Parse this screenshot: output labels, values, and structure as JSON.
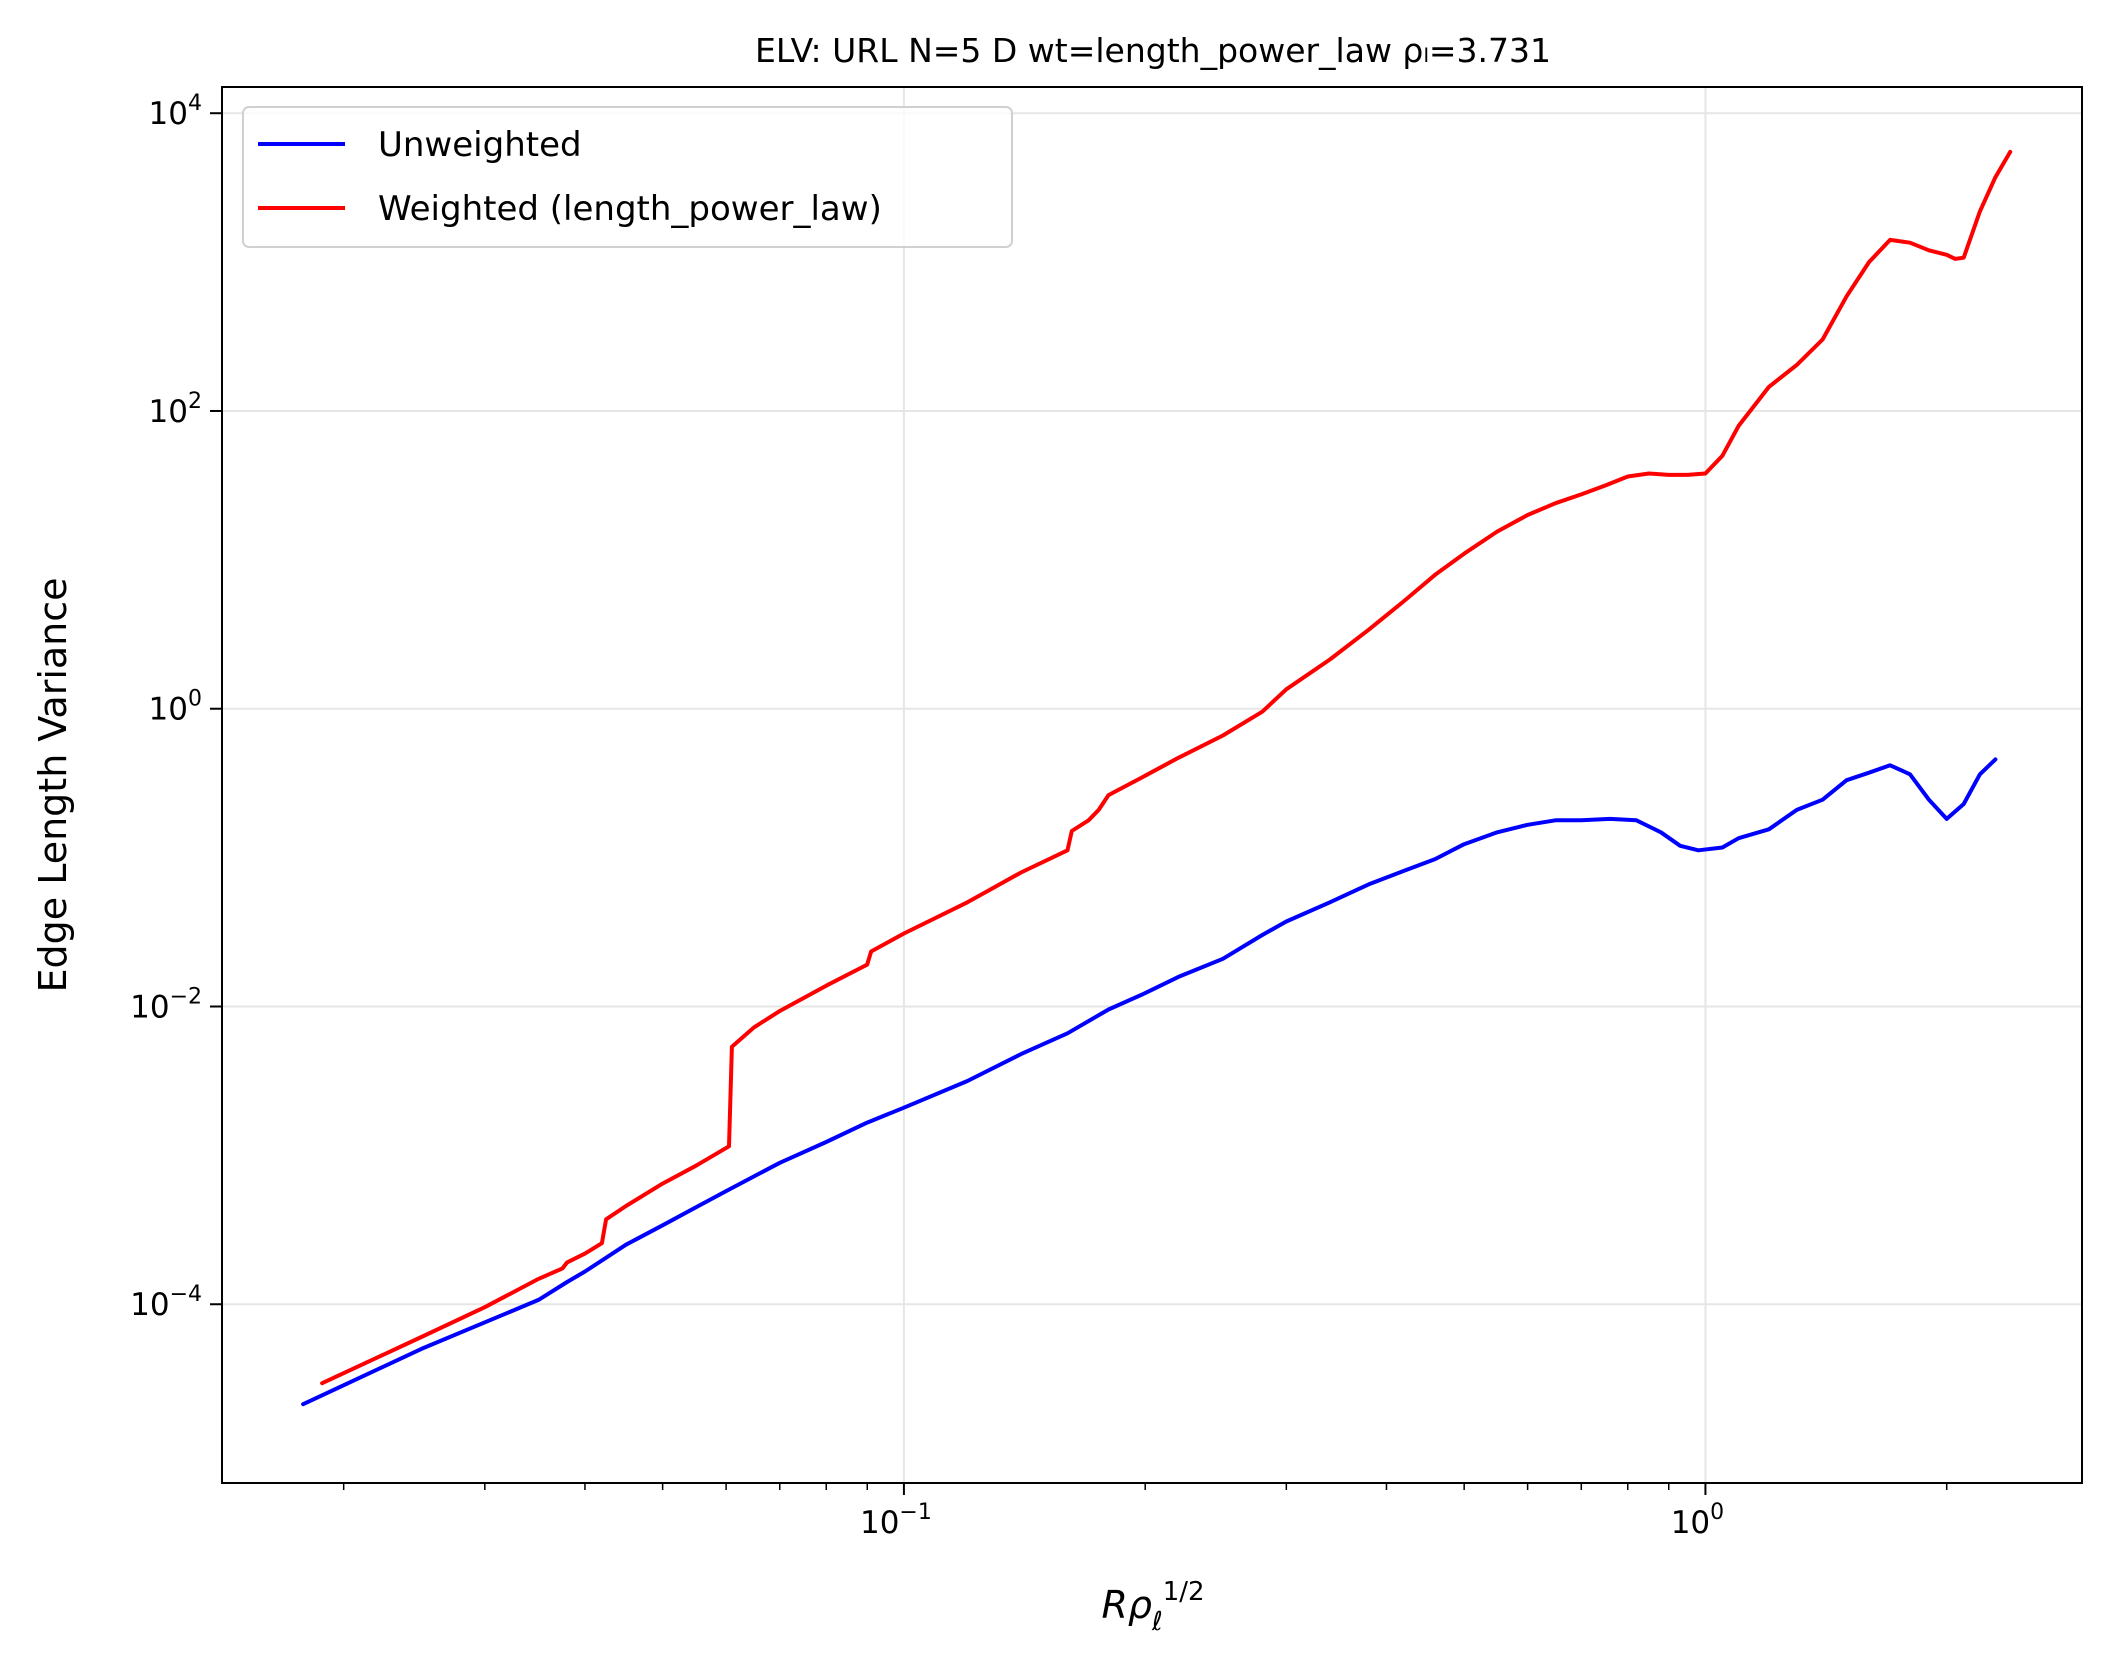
{
  "chart_data": {
    "type": "line",
    "title": "ELV: URL N=5 D wt=length_power_law ρₗ=3.731",
    "xlabel": "Rρ_ℓ^{1/2}",
    "ylabel": "Edge Length Variance",
    "xscale": "log",
    "yscale": "log",
    "xlim": [
      0.0141,
      2.95
    ],
    "ylim": [
      6.3e-06,
      15000
    ],
    "grid": true,
    "legend_position": "top-left",
    "x_ticks": [
      {
        "value": 0.1,
        "base": "10",
        "exp": "−1"
      },
      {
        "value": 1,
        "base": "10",
        "exp": "0"
      }
    ],
    "y_ticks": [
      {
        "value": 0.0001,
        "base": "10",
        "exp": "−4"
      },
      {
        "value": 0.01,
        "base": "10",
        "exp": "−2"
      },
      {
        "value": 1,
        "base": "10",
        "exp": "0"
      },
      {
        "value": 100,
        "base": "10",
        "exp": "2"
      },
      {
        "value": 10000,
        "base": "10",
        "exp": "4"
      }
    ],
    "series": [
      {
        "name": "Unweighted",
        "color": "#0000ff",
        "points": [
          [
            0.0178,
            2.13e-05
          ],
          [
            0.025,
            5.01e-05
          ],
          [
            0.035,
            0.000107
          ],
          [
            0.038,
            0.000141
          ],
          [
            0.04,
            0.000166
          ],
          [
            0.045,
            0.000251
          ],
          [
            0.05,
            0.000339
          ],
          [
            0.055,
            0.000447
          ],
          [
            0.06,
            0.000575
          ],
          [
            0.07,
            0.000891
          ],
          [
            0.08,
            0.00123
          ],
          [
            0.09,
            0.00166
          ],
          [
            0.1,
            0.00209
          ],
          [
            0.12,
            0.00316
          ],
          [
            0.14,
            0.00479
          ],
          [
            0.16,
            0.00661
          ],
          [
            0.18,
            0.00955
          ],
          [
            0.2,
            0.0123
          ],
          [
            0.22,
            0.0158
          ],
          [
            0.25,
            0.0209
          ],
          [
            0.28,
            0.0302
          ],
          [
            0.3,
            0.0372
          ],
          [
            0.34,
            0.0501
          ],
          [
            0.38,
            0.0661
          ],
          [
            0.42,
            0.0813
          ],
          [
            0.46,
            0.0977
          ],
          [
            0.5,
            0.123
          ],
          [
            0.55,
            0.148
          ],
          [
            0.6,
            0.166
          ],
          [
            0.65,
            0.178
          ],
          [
            0.7,
            0.178
          ],
          [
            0.76,
            0.182
          ],
          [
            0.82,
            0.178
          ],
          [
            0.88,
            0.148
          ],
          [
            0.93,
            0.12
          ],
          [
            0.98,
            0.112
          ],
          [
            1.05,
            0.117
          ],
          [
            1.1,
            0.135
          ],
          [
            1.2,
            0.155
          ],
          [
            1.3,
            0.209
          ],
          [
            1.4,
            0.245
          ],
          [
            1.5,
            0.331
          ],
          [
            1.6,
            0.372
          ],
          [
            1.7,
            0.417
          ],
          [
            1.8,
            0.363
          ],
          [
            1.9,
            0.245
          ],
          [
            2.0,
            0.182
          ],
          [
            2.1,
            0.229
          ],
          [
            2.2,
            0.363
          ],
          [
            2.3,
            0.457
          ]
        ]
      },
      {
        "name": "Weighted (length_power_law)",
        "color": "#ff0000",
        "points": [
          [
            0.0188,
            2.95e-05
          ],
          [
            0.025,
            6.03e-05
          ],
          [
            0.03,
            9.55e-05
          ],
          [
            0.035,
            0.000148
          ],
          [
            0.0375,
            0.000174
          ],
          [
            0.038,
            0.000191
          ],
          [
            0.04,
            0.000219
          ],
          [
            0.042,
            0.000257
          ],
          [
            0.0425,
            0.000372
          ],
          [
            0.045,
            0.000457
          ],
          [
            0.05,
            0.000646
          ],
          [
            0.055,
            0.000851
          ],
          [
            0.0605,
            0.00115
          ],
          [
            0.061,
            0.00537
          ],
          [
            0.065,
            0.00724
          ],
          [
            0.07,
            0.00933
          ],
          [
            0.08,
            0.0138
          ],
          [
            0.09,
            0.0191
          ],
          [
            0.091,
            0.0234
          ],
          [
            0.1,
            0.0309
          ],
          [
            0.12,
            0.0501
          ],
          [
            0.14,
            0.0794
          ],
          [
            0.16,
            0.112
          ],
          [
            0.162,
            0.151
          ],
          [
            0.17,
            0.178
          ],
          [
            0.175,
            0.209
          ],
          [
            0.18,
            0.263
          ],
          [
            0.2,
            0.355
          ],
          [
            0.22,
            0.468
          ],
          [
            0.25,
            0.661
          ],
          [
            0.28,
            0.955
          ],
          [
            0.3,
            1.35
          ],
          [
            0.34,
            2.14
          ],
          [
            0.38,
            3.39
          ],
          [
            0.42,
            5.25
          ],
          [
            0.46,
            7.94
          ],
          [
            0.5,
            11.0
          ],
          [
            0.55,
            15.5
          ],
          [
            0.6,
            20.0
          ],
          [
            0.65,
            24.0
          ],
          [
            0.7,
            27.5
          ],
          [
            0.75,
            31.6
          ],
          [
            0.8,
            36.3
          ],
          [
            0.85,
            38.0
          ],
          [
            0.9,
            37.2
          ],
          [
            0.95,
            37.2
          ],
          [
            1.0,
            38.0
          ],
          [
            1.05,
            50.1
          ],
          [
            1.1,
            79.4
          ],
          [
            1.2,
            145
          ],
          [
            1.3,
            204
          ],
          [
            1.4,
            302
          ],
          [
            1.5,
            589
          ],
          [
            1.6,
            1000
          ],
          [
            1.7,
            1410
          ],
          [
            1.8,
            1350
          ],
          [
            1.9,
            1200
          ],
          [
            2.0,
            1120
          ],
          [
            2.05,
            1050
          ],
          [
            2.1,
            1070
          ],
          [
            2.2,
            2190
          ],
          [
            2.3,
            3720
          ],
          [
            2.4,
            5500
          ]
        ]
      }
    ]
  }
}
